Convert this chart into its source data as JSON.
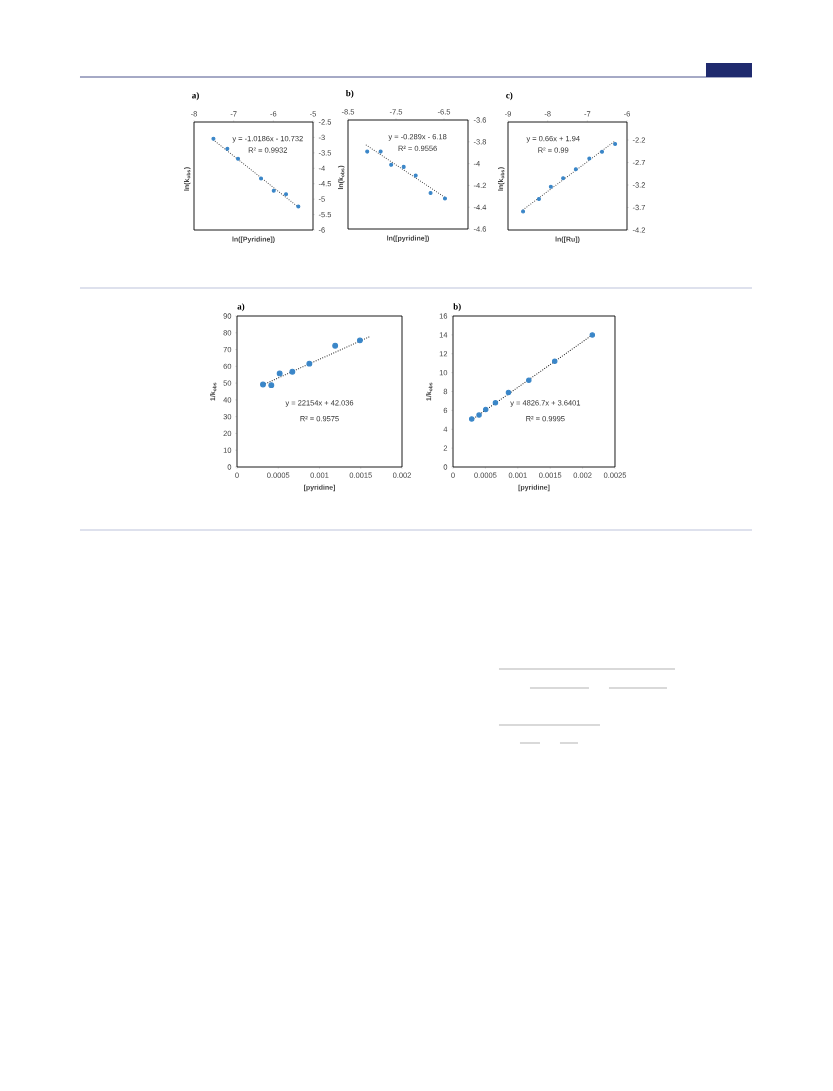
{
  "chart_data": [
    {
      "type": "scatter",
      "marker": "circle",
      "title": "a)",
      "xlabel": "ln([Pyridine])",
      "ylabel": "ln(k$_{obs}$)",
      "xlim": [
        -8,
        -5
      ],
      "xticks": [
        -8,
        -7,
        -6,
        -5
      ],
      "ylim": [
        -6,
        -2.5
      ],
      "yticks": [
        -6,
        -5.5,
        -5,
        -4.5,
        -4,
        -3.5,
        -3,
        -2.5
      ],
      "annotations": [
        "y = -1.0186x - 10.732",
        "R² = 0.9932"
      ],
      "series": [
        {
          "color": "#3a86c8",
          "x": [
            -7.51,
            -7.16,
            -6.89,
            -6.31,
            -5.99,
            -5.68,
            -5.37
          ],
          "values": [
            -3.04,
            -3.37,
            -3.69,
            -4.33,
            -4.73,
            -4.84,
            -5.24
          ]
        },
        {
          "type": "line",
          "marker": "none",
          "line_style": "dotted",
          "color": "#505050",
          "x": [
            -7.51,
            -5.37
          ],
          "values": [
            -3.08,
            -5.26
          ]
        }
      ]
    },
    {
      "type": "scatter",
      "marker": "circle",
      "title": "b)",
      "xlabel": "ln([pyridine])",
      "ylabel": "ln(k$_{obs}$)",
      "xlim": [
        -8.5,
        -6
      ],
      "xticks": [
        -8.5,
        -7.5,
        -6.5
      ],
      "ylim": [
        -4.6,
        -3.6
      ],
      "yticks": [
        -4.6,
        -4.4,
        -4.2,
        -4,
        -3.8,
        -3.6
      ],
      "annotations": [
        "y = -0.289x - 6.18",
        "R² = 0.9556"
      ],
      "series": [
        {
          "color": "#3a86c8",
          "x": [
            -8.1,
            -7.82,
            -7.6,
            -7.34,
            -7.09,
            -6.78,
            -6.48
          ],
          "values": [
            -3.89,
            -3.89,
            -4.01,
            -4.03,
            -4.11,
            -4.27,
            -4.32
          ]
        },
        {
          "type": "line",
          "marker": "none",
          "line_style": "dotted",
          "color": "#505050",
          "x": [
            -8.12,
            -6.48
          ],
          "values": [
            -3.83,
            -4.31
          ]
        }
      ]
    },
    {
      "type": "scatter",
      "marker": "circle",
      "title": "c)",
      "xlabel": "ln([Ru])",
      "ylabel": "ln(k$_{obs}$)",
      "xlim": [
        -9,
        -6
      ],
      "xticks": [
        -9,
        -8,
        -7,
        -6
      ],
      "ylim": [
        -4.2,
        -1.8
      ],
      "yticks": [
        -4.2,
        -3.7,
        -3.2,
        -2.7,
        -2.2
      ],
      "annotations": [
        "y = 0.66x + 1.94",
        "R² = 0.99"
      ],
      "series": [
        {
          "color": "#3a86c8",
          "x": [
            -8.62,
            -8.22,
            -7.92,
            -7.61,
            -7.29,
            -6.95,
            -6.63,
            -6.3
          ],
          "values": [
            -3.79,
            -3.51,
            -3.24,
            -3.05,
            -2.85,
            -2.61,
            -2.46,
            -2.29
          ]
        },
        {
          "type": "line",
          "marker": "none",
          "line_style": "dotted",
          "color": "#505050",
          "x": [
            -8.62,
            -6.3
          ],
          "values": [
            -3.75,
            -2.22
          ]
        }
      ]
    },
    {
      "type": "scatter",
      "marker": "circle",
      "title": "a)",
      "xlabel": "[pyridine]",
      "ylabel": "1/k$_{obs}$",
      "xlim": [
        0,
        0.002
      ],
      "xticks": [
        0,
        0.0005,
        0.001,
        0.0015,
        0.002
      ],
      "ylim": [
        0,
        90
      ],
      "yticks": [
        0,
        10,
        20,
        30,
        40,
        50,
        60,
        70,
        80,
        90
      ],
      "annotations": [
        "y = 22154x + 42.036",
        "R² = 0.9575"
      ],
      "series": [
        {
          "color": "#3a86c8",
          "x": [
            0.000315,
            0.000416,
            0.000517,
            0.000671,
            0.000877,
            0.00119,
            0.00149
          ],
          "values": [
            49.2,
            48.8,
            55.8,
            56.8,
            61.6,
            72.3,
            75.5
          ]
        },
        {
          "type": "line",
          "marker": "none",
          "line_style": "dotted",
          "color": "#1a1a1a",
          "x": [
            0.00032,
            0.0016
          ],
          "values": [
            49.1,
            77.5
          ]
        }
      ]
    },
    {
      "type": "scatter",
      "marker": "circle",
      "title": "b)",
      "xlabel": "[pyridine]",
      "ylabel": "1/k$_{obs}$",
      "xlim": [
        0,
        0.0025
      ],
      "xticks": [
        0,
        0.0005,
        0.001,
        0.0015,
        0.002,
        0.0025
      ],
      "ylim": [
        0,
        16
      ],
      "yticks": [
        0,
        2,
        4,
        6,
        8,
        10,
        12,
        14,
        16
      ],
      "annotations": [
        "y = 4826.7x + 3.6401",
        "R² = 0.9995"
      ],
      "series": [
        {
          "color": "#3a86c8",
          "x": [
            0.000289,
            0.000402,
            0.000505,
            0.000655,
            0.000856,
            0.00117,
            0.00157,
            0.00215
          ],
          "values": [
            5.1,
            5.5,
            6.1,
            6.8,
            7.9,
            9.2,
            11.2,
            14
          ]
        },
        {
          "type": "line",
          "marker": "none",
          "line_style": "dotted",
          "color": "#1a1a1a",
          "x": [
            0.00029,
            0.00215
          ],
          "values": [
            5,
            14
          ]
        }
      ]
    }
  ]
}
